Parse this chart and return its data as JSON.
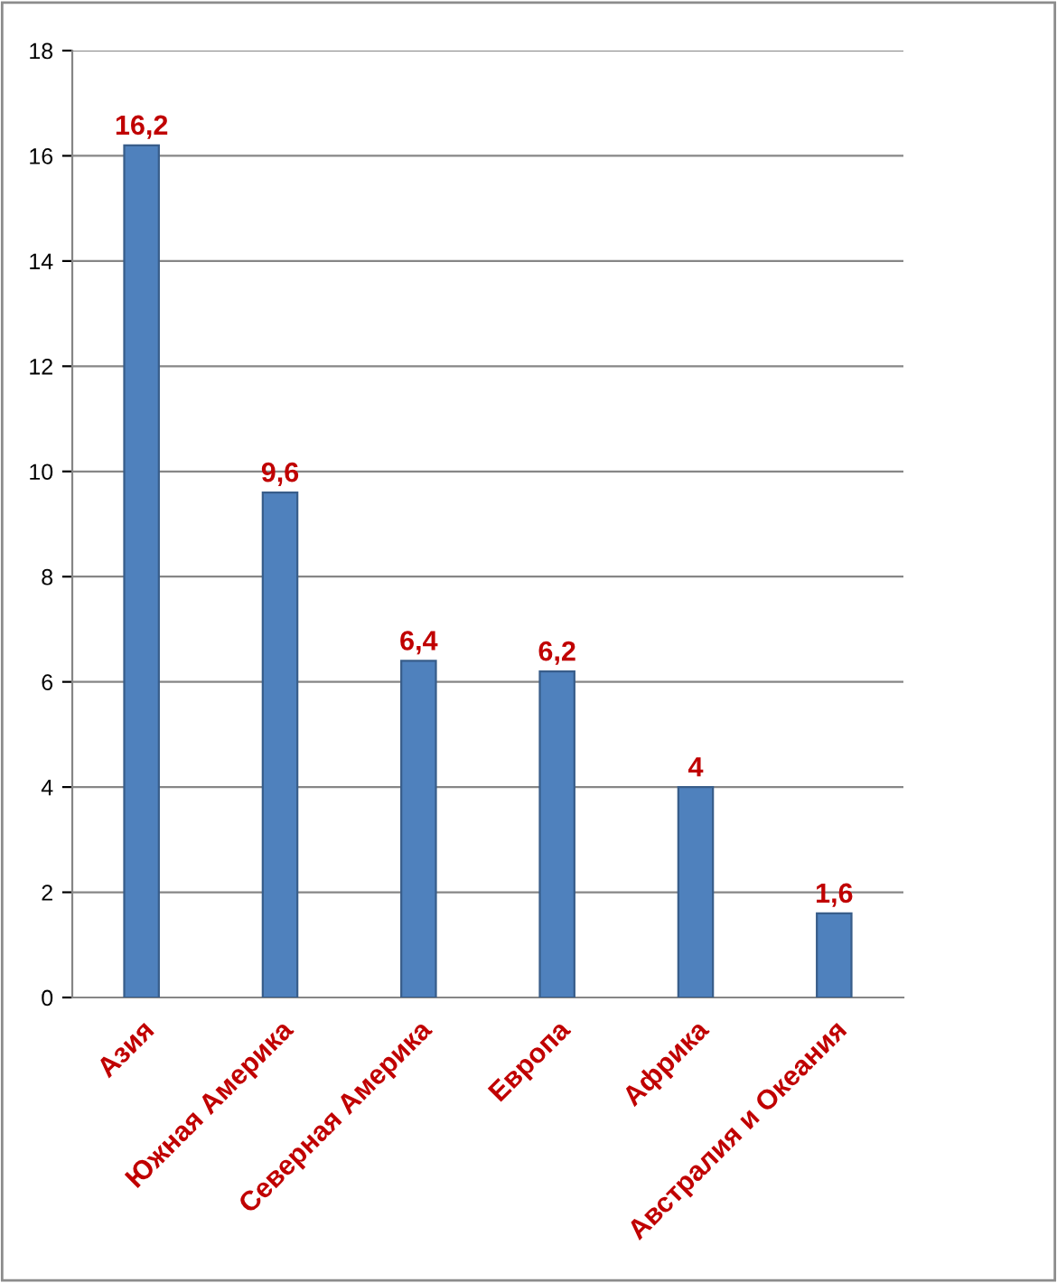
{
  "chart_data": {
    "type": "bar",
    "categories": [
      "Азия",
      "Южная Америка",
      "Северная Америка",
      "Европа",
      "Африка",
      "Австралия и Океания"
    ],
    "series": [
      {
        "color": "#4f81bd",
        "values": [
          16.2,
          9.6,
          6.4,
          6.2,
          4,
          1.6
        ],
        "value_labels": [
          "16,2",
          "9,6",
          "6,4",
          "6,2",
          "4",
          "1,6"
        ]
      }
    ],
    "ylim": [
      0,
      18
    ],
    "yticks": [
      0,
      2,
      4,
      6,
      8,
      10,
      12,
      14,
      16,
      18
    ],
    "grid": "y",
    "legend": false
  }
}
